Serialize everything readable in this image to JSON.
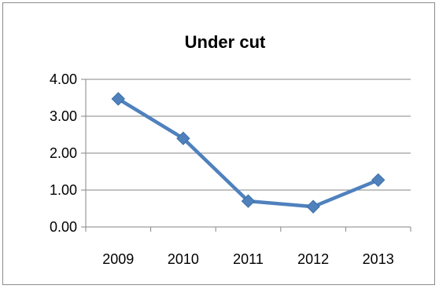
{
  "chart_data": {
    "type": "line",
    "title": "Under cut",
    "categories": [
      "2009",
      "2010",
      "2011",
      "2012",
      "2013"
    ],
    "series": [
      {
        "values": [
          3.47,
          2.4,
          0.7,
          0.55,
          1.27
        ]
      }
    ],
    "ylim": [
      0,
      4
    ],
    "yticks": [
      "0.00",
      "1.00",
      "2.00",
      "3.00",
      "4.00"
    ],
    "grid": true,
    "legend": "none",
    "colors": {
      "series": "#4F81BD",
      "grid": "#868686",
      "axis": "#868686"
    }
  }
}
